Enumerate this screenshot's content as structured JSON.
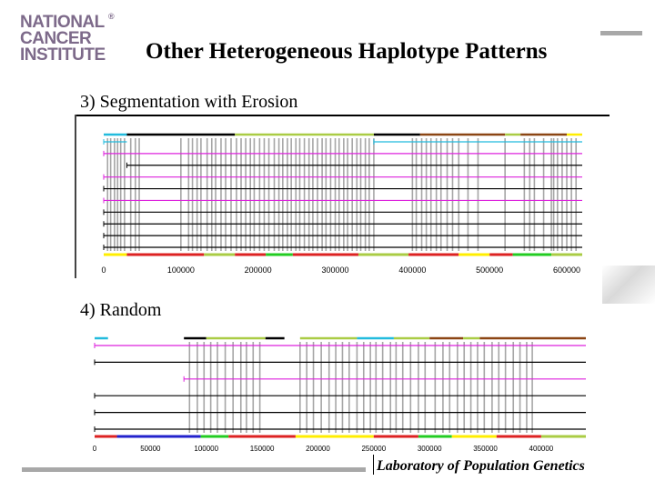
{
  "logo": {
    "line1": "NATIONAL",
    "line2": "CANCER",
    "line3": "INSTITUTE",
    "reg": "®"
  },
  "title": "Other Heterogeneous Haplotype Patterns",
  "footer": "Laboratory of Population Genetics",
  "colors": {
    "gray_bars": "#a6a6a6",
    "magenta": "#dd22dd",
    "cyan": "#22bbdd",
    "black": "#000000",
    "brown": "#8b4513",
    "olive": "#aacc44",
    "yellow": "#ffee00",
    "red": "#dd2222",
    "blue": "#2222cc",
    "green": "#22cc22"
  },
  "chart_data": [
    {
      "type": "haplotype-segmentation",
      "section_label": "3) Segmentation with Erosion",
      "xlim": [
        0,
        620000
      ],
      "x_ticks": [
        "0",
        "100000",
        "200000",
        "300000",
        "400000",
        "500000",
        "600000"
      ],
      "x_tick_values": [
        0,
        100000,
        200000,
        300000,
        400000,
        500000,
        600000
      ],
      "haplotype_tracks": [
        {
          "color": "cyan",
          "segments": [
            [
              0,
              30000
            ],
            [
              350000,
              620000
            ]
          ]
        },
        {
          "color": "magenta",
          "segments": [
            [
              0,
              620000
            ]
          ]
        },
        {
          "color": "black",
          "segments": [
            [
              30000,
              620000
            ]
          ]
        },
        {
          "color": "magenta",
          "segments": [
            [
              0,
              620000
            ]
          ]
        },
        {
          "color": "black",
          "segments": [
            [
              0,
              620000
            ]
          ]
        },
        {
          "color": "magenta",
          "segments": [
            [
              0,
              620000
            ]
          ]
        },
        {
          "color": "black",
          "segments": [
            [
              0,
              620000
            ]
          ]
        },
        {
          "color": "black",
          "segments": [
            [
              0,
              620000
            ]
          ]
        },
        {
          "color": "black",
          "segments": [
            [
              0,
              620000
            ]
          ]
        },
        {
          "color": "black",
          "segments": [
            [
              0,
              620000
            ]
          ]
        }
      ],
      "top_segments": [
        {
          "color": "cyan",
          "range": [
            0,
            30000
          ]
        },
        {
          "color": "black",
          "range": [
            30000,
            170000
          ]
        },
        {
          "color": "olive",
          "range": [
            170000,
            350000
          ]
        },
        {
          "color": "black",
          "range": [
            350000,
            410000
          ]
        },
        {
          "color": "brown",
          "range": [
            410000,
            520000
          ]
        },
        {
          "color": "olive",
          "range": [
            520000,
            540000
          ]
        },
        {
          "color": "brown",
          "range": [
            540000,
            600000
          ]
        },
        {
          "color": "yellow",
          "range": [
            600000,
            620000
          ]
        }
      ],
      "bottom_segments": [
        {
          "color": "yellow",
          "range": [
            0,
            30000
          ]
        },
        {
          "color": "red",
          "range": [
            30000,
            130000
          ]
        },
        {
          "color": "olive",
          "range": [
            130000,
            170000
          ]
        },
        {
          "color": "red",
          "range": [
            170000,
            210000
          ]
        },
        {
          "color": "green",
          "range": [
            210000,
            245000
          ]
        },
        {
          "color": "red",
          "range": [
            245000,
            330000
          ]
        },
        {
          "color": "olive",
          "range": [
            330000,
            395000
          ]
        },
        {
          "color": "red",
          "range": [
            395000,
            460000
          ]
        },
        {
          "color": "yellow",
          "range": [
            460000,
            500000
          ]
        },
        {
          "color": "red",
          "range": [
            500000,
            530000
          ]
        },
        {
          "color": "green",
          "range": [
            530000,
            580000
          ]
        },
        {
          "color": "olive",
          "range": [
            580000,
            620000
          ]
        }
      ],
      "polymorphic_sites": [
        5000,
        9000,
        14000,
        18000,
        22000,
        27000,
        35000,
        41000,
        46000,
        100000,
        110000,
        115000,
        121000,
        126000,
        134000,
        140000,
        145000,
        152000,
        158000,
        165000,
        172000,
        178000,
        184000,
        190000,
        195000,
        202000,
        208000,
        214000,
        221000,
        227000,
        232000,
        238000,
        243000,
        249000,
        254000,
        260000,
        266000,
        271000,
        277000,
        283000,
        288000,
        294000,
        300000,
        305000,
        311000,
        316000,
        322000,
        328000,
        333000,
        339000,
        344000,
        350000,
        400000,
        405000,
        412000,
        418000,
        424000,
        431000,
        437000,
        445000,
        452000,
        460000,
        472000,
        485000,
        520000,
        545000,
        552000,
        558000,
        570000,
        580000,
        583000,
        588000,
        594000,
        600000,
        606000,
        612000
      ]
    },
    {
      "type": "haplotype-random",
      "section_label": "4) Random",
      "xlim": [
        0,
        440000
      ],
      "x_ticks": [
        "0",
        "50000",
        "100000",
        "150000",
        "200000",
        "250000",
        "300000",
        "350000",
        "400000"
      ],
      "x_tick_values": [
        0,
        50000,
        100000,
        150000,
        200000,
        250000,
        300000,
        350000,
        400000
      ],
      "haplotype_tracks": [
        {
          "color": "magenta",
          "segments": [
            [
              0,
              440000
            ]
          ]
        },
        {
          "color": "black",
          "segments": [
            [
              0,
              440000
            ]
          ]
        },
        {
          "color": "magenta",
          "segments": [
            [
              80000,
              440000
            ]
          ]
        },
        {
          "color": "black",
          "segments": [
            [
              0,
              440000
            ]
          ]
        },
        {
          "color": "black",
          "segments": [
            [
              0,
              440000
            ]
          ]
        },
        {
          "color": "black",
          "segments": [
            [
              0,
              440000
            ]
          ]
        }
      ],
      "top_segments": [
        {
          "color": "cyan",
          "range": [
            0,
            12000
          ]
        },
        {
          "color": "black",
          "range": [
            80000,
            100000
          ]
        },
        {
          "color": "olive",
          "range": [
            100000,
            153000
          ]
        },
        {
          "color": "black",
          "range": [
            153000,
            170000
          ]
        },
        {
          "color": "olive",
          "range": [
            184000,
            235000
          ]
        },
        {
          "color": "cyan",
          "range": [
            235000,
            268000
          ]
        },
        {
          "color": "olive",
          "range": [
            268000,
            300000
          ]
        },
        {
          "color": "brown",
          "range": [
            300000,
            330000
          ]
        },
        {
          "color": "olive",
          "range": [
            330000,
            345000
          ]
        },
        {
          "color": "brown",
          "range": [
            345000,
            440000
          ]
        }
      ],
      "bottom_segments": [
        {
          "color": "red",
          "range": [
            0,
            20000
          ]
        },
        {
          "color": "blue",
          "range": [
            20000,
            95000
          ]
        },
        {
          "color": "green",
          "range": [
            95000,
            120000
          ]
        },
        {
          "color": "red",
          "range": [
            120000,
            180000
          ]
        },
        {
          "color": "yellow",
          "range": [
            180000,
            250000
          ]
        },
        {
          "color": "red",
          "range": [
            250000,
            290000
          ]
        },
        {
          "color": "green",
          "range": [
            290000,
            320000
          ]
        },
        {
          "color": "yellow",
          "range": [
            320000,
            360000
          ]
        },
        {
          "color": "red",
          "range": [
            360000,
            400000
          ]
        },
        {
          "color": "olive",
          "range": [
            400000,
            440000
          ]
        }
      ],
      "polymorphic_sites": [
        85000,
        92000,
        98000,
        104000,
        110000,
        117000,
        124000,
        131000,
        136000,
        142000,
        148000,
        184000,
        190000,
        196000,
        203000,
        210000,
        216000,
        222000,
        228000,
        235000,
        241000,
        247000,
        252000,
        258000,
        265000,
        270000,
        276000,
        283000,
        290000,
        296000,
        305000,
        312000,
        318000,
        325000,
        331000,
        337000,
        343000,
        349000,
        356000,
        362000,
        368000,
        375000,
        381000,
        387000,
        392000
      ]
    }
  ]
}
